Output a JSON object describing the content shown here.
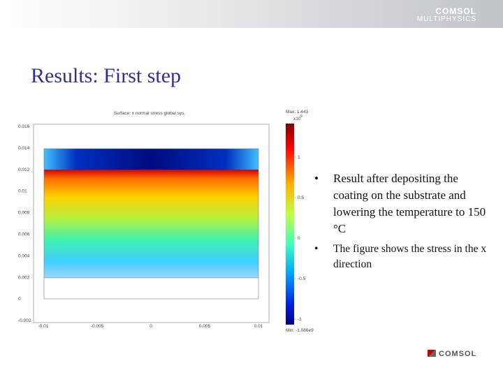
{
  "header": {
    "logo_top": "COMSOL",
    "logo_bottom": "MULTIPHYSICS"
  },
  "title": "Results: First step",
  "figure": {
    "title": "Surface: x normal stress global sys.",
    "y_tick_labels": [
      "0.016",
      "0.014",
      "0.012",
      "0.01",
      "0.008",
      "0.006",
      "0.004",
      "0.002",
      "0",
      "-0.002"
    ],
    "x_tick_labels": [
      "-0.01",
      "-0.005",
      "0",
      "0.005",
      "0.01"
    ],
    "colorbar": {
      "max_label": "Max: 1.443",
      "scale_base": "x10",
      "scale_exponent": "9",
      "tick_labels": [
        "1",
        "0.5",
        "0",
        "-0.5",
        "-1"
      ],
      "min_label": "Min: -1.086e9"
    }
  },
  "bullets": [
    "Result after depositing the coating on the substrate and lowering the temperature to 150 °C",
    "The figure shows the stress in the x direction"
  ],
  "footer": {
    "logo": "COMSOL"
  }
}
